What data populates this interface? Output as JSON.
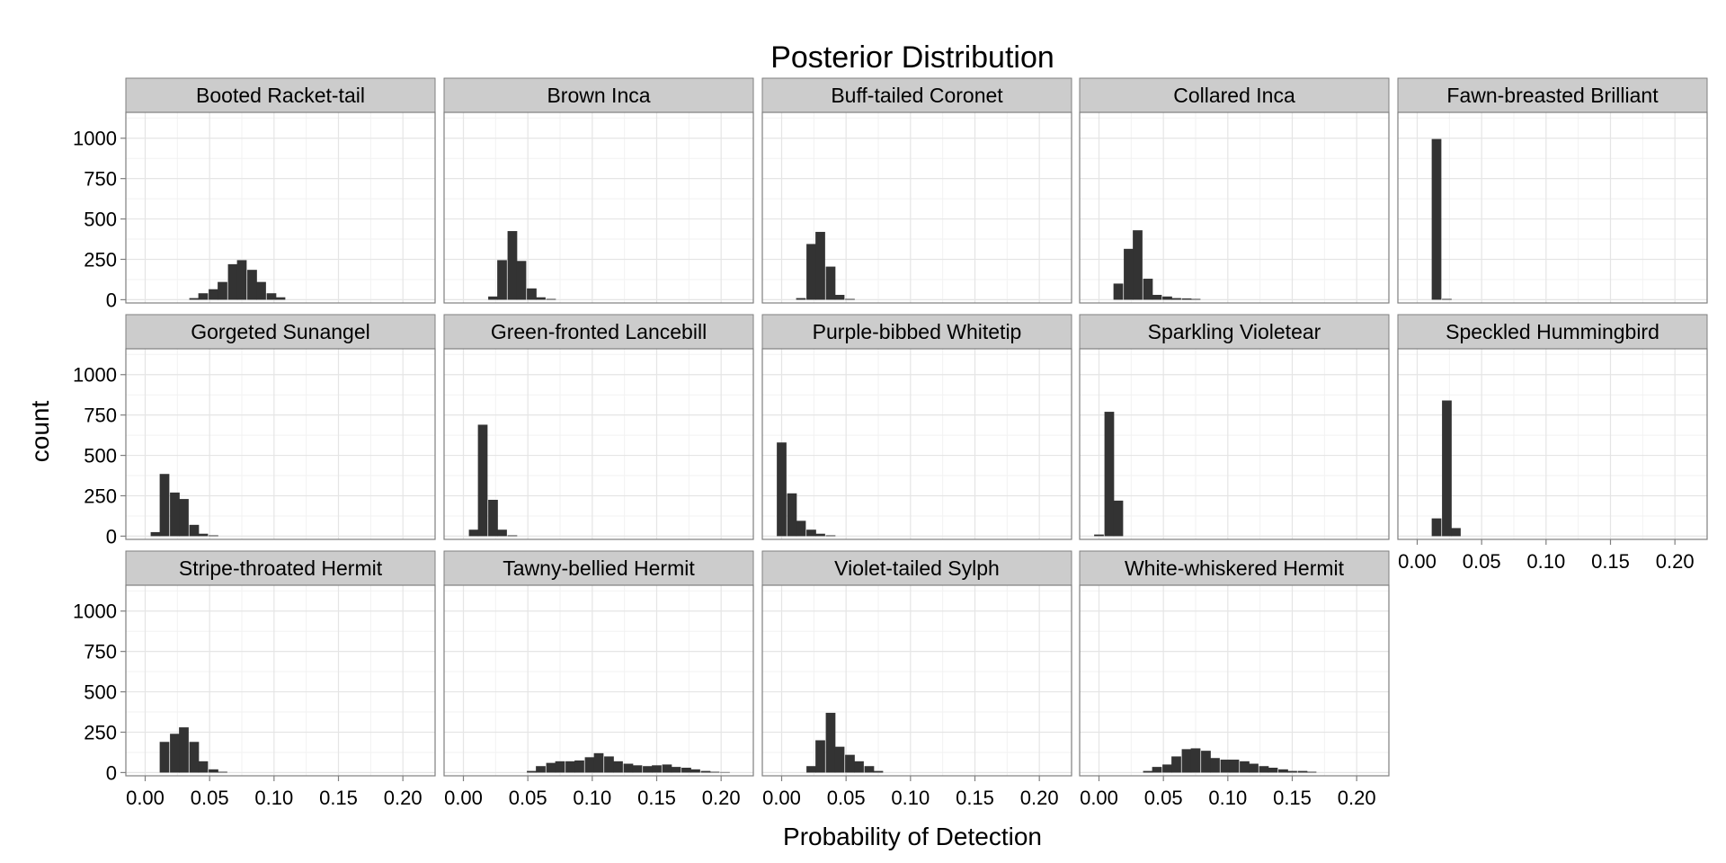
{
  "chart_data": {
    "type": "histogram",
    "title": "Posterior Distribution",
    "xlabel": "Probability of Detection",
    "ylabel": "count",
    "xlim": [
      -0.015,
      0.225
    ],
    "ylim": [
      -20,
      1160
    ],
    "x_ticks": [
      "0.00",
      "0.05",
      "0.10",
      "0.15",
      "0.20"
    ],
    "x_tick_values": [
      0.0,
      0.05,
      0.1,
      0.15,
      0.2
    ],
    "y_ticks": [
      "0",
      "250",
      "500",
      "750",
      "1000"
    ],
    "y_tick_values": [
      0,
      250,
      500,
      750,
      1000
    ],
    "bin_width": 0.0075,
    "grid": true,
    "layout": "facet_wrap, 3 rows x 5 columns",
    "panels": [
      {
        "name": "Booted Racket-tail",
        "bins": [
          [
            0.038,
            10
          ],
          [
            0.045,
            40
          ],
          [
            0.053,
            65
          ],
          [
            0.06,
            110
          ],
          [
            0.068,
            220
          ],
          [
            0.075,
            245
          ],
          [
            0.083,
            185
          ],
          [
            0.09,
            110
          ],
          [
            0.098,
            40
          ],
          [
            0.105,
            15
          ]
        ]
      },
      {
        "name": "Brown Inca",
        "bins": [
          [
            0.023,
            20
          ],
          [
            0.03,
            245
          ],
          [
            0.038,
            425
          ],
          [
            0.045,
            240
          ],
          [
            0.053,
            70
          ],
          [
            0.06,
            15
          ],
          [
            0.068,
            5
          ]
        ]
      },
      {
        "name": "Buff-tailed Coronet",
        "bins": [
          [
            0.015,
            10
          ],
          [
            0.023,
            345
          ],
          [
            0.03,
            420
          ],
          [
            0.038,
            205
          ],
          [
            0.045,
            30
          ],
          [
            0.053,
            5
          ]
        ]
      },
      {
        "name": "Collared Inca",
        "bins": [
          [
            0.015,
            100
          ],
          [
            0.023,
            315
          ],
          [
            0.03,
            430
          ],
          [
            0.038,
            130
          ],
          [
            0.045,
            30
          ],
          [
            0.053,
            20
          ],
          [
            0.06,
            10
          ],
          [
            0.068,
            8
          ],
          [
            0.075,
            5
          ]
        ]
      },
      {
        "name": "Fawn-breasted Brilliant",
        "bins": [
          [
            0.015,
            995
          ],
          [
            0.023,
            5
          ]
        ]
      },
      {
        "name": "Gorgeted Sunangel",
        "bins": [
          [
            0.008,
            25
          ],
          [
            0.015,
            385
          ],
          [
            0.023,
            270
          ],
          [
            0.03,
            230
          ],
          [
            0.038,
            70
          ],
          [
            0.045,
            15
          ],
          [
            0.053,
            5
          ]
        ]
      },
      {
        "name": "Green-fronted Lancebill",
        "bins": [
          [
            0.008,
            40
          ],
          [
            0.015,
            690
          ],
          [
            0.023,
            225
          ],
          [
            0.03,
            40
          ],
          [
            0.038,
            5
          ]
        ]
      },
      {
        "name": "Purple-bibbed Whitetip",
        "bins": [
          [
            0.0,
            580
          ],
          [
            0.008,
            265
          ],
          [
            0.015,
            95
          ],
          [
            0.023,
            40
          ],
          [
            0.03,
            15
          ],
          [
            0.038,
            5
          ]
        ]
      },
      {
        "name": "Sparkling Violetear",
        "bins": [
          [
            0.0,
            10
          ],
          [
            0.008,
            770
          ],
          [
            0.015,
            220
          ]
        ]
      },
      {
        "name": "Speckled Hummingbird",
        "bins": [
          [
            0.015,
            110
          ],
          [
            0.023,
            840
          ],
          [
            0.03,
            50
          ]
        ]
      },
      {
        "name": "Stripe-throated Hermit",
        "bins": [
          [
            0.015,
            190
          ],
          [
            0.023,
            240
          ],
          [
            0.03,
            280
          ],
          [
            0.038,
            190
          ],
          [
            0.045,
            70
          ],
          [
            0.053,
            20
          ],
          [
            0.06,
            5
          ]
        ]
      },
      {
        "name": "Tawny-bellied Hermit",
        "bins": [
          [
            0.053,
            10
          ],
          [
            0.06,
            40
          ],
          [
            0.068,
            60
          ],
          [
            0.075,
            70
          ],
          [
            0.083,
            70
          ],
          [
            0.09,
            75
          ],
          [
            0.098,
            95
          ],
          [
            0.105,
            120
          ],
          [
            0.113,
            100
          ],
          [
            0.12,
            70
          ],
          [
            0.128,
            55
          ],
          [
            0.135,
            45
          ],
          [
            0.143,
            40
          ],
          [
            0.15,
            45
          ],
          [
            0.158,
            50
          ],
          [
            0.165,
            35
          ],
          [
            0.173,
            30
          ],
          [
            0.18,
            20
          ],
          [
            0.188,
            10
          ],
          [
            0.195,
            5
          ],
          [
            0.203,
            3
          ]
        ]
      },
      {
        "name": "Violet-tailed Sylph",
        "bins": [
          [
            0.023,
            40
          ],
          [
            0.03,
            200
          ],
          [
            0.038,
            370
          ],
          [
            0.045,
            160
          ],
          [
            0.053,
            110
          ],
          [
            0.06,
            70
          ],
          [
            0.068,
            40
          ],
          [
            0.075,
            10
          ]
        ]
      },
      {
        "name": "White-whiskered Hermit",
        "bins": [
          [
            0.038,
            10
          ],
          [
            0.045,
            35
          ],
          [
            0.053,
            50
          ],
          [
            0.06,
            100
          ],
          [
            0.068,
            145
          ],
          [
            0.075,
            150
          ],
          [
            0.083,
            135
          ],
          [
            0.09,
            90
          ],
          [
            0.098,
            80
          ],
          [
            0.105,
            80
          ],
          [
            0.113,
            70
          ],
          [
            0.12,
            55
          ],
          [
            0.128,
            40
          ],
          [
            0.135,
            30
          ],
          [
            0.143,
            20
          ],
          [
            0.15,
            10
          ],
          [
            0.158,
            10
          ],
          [
            0.165,
            5
          ]
        ]
      }
    ]
  }
}
